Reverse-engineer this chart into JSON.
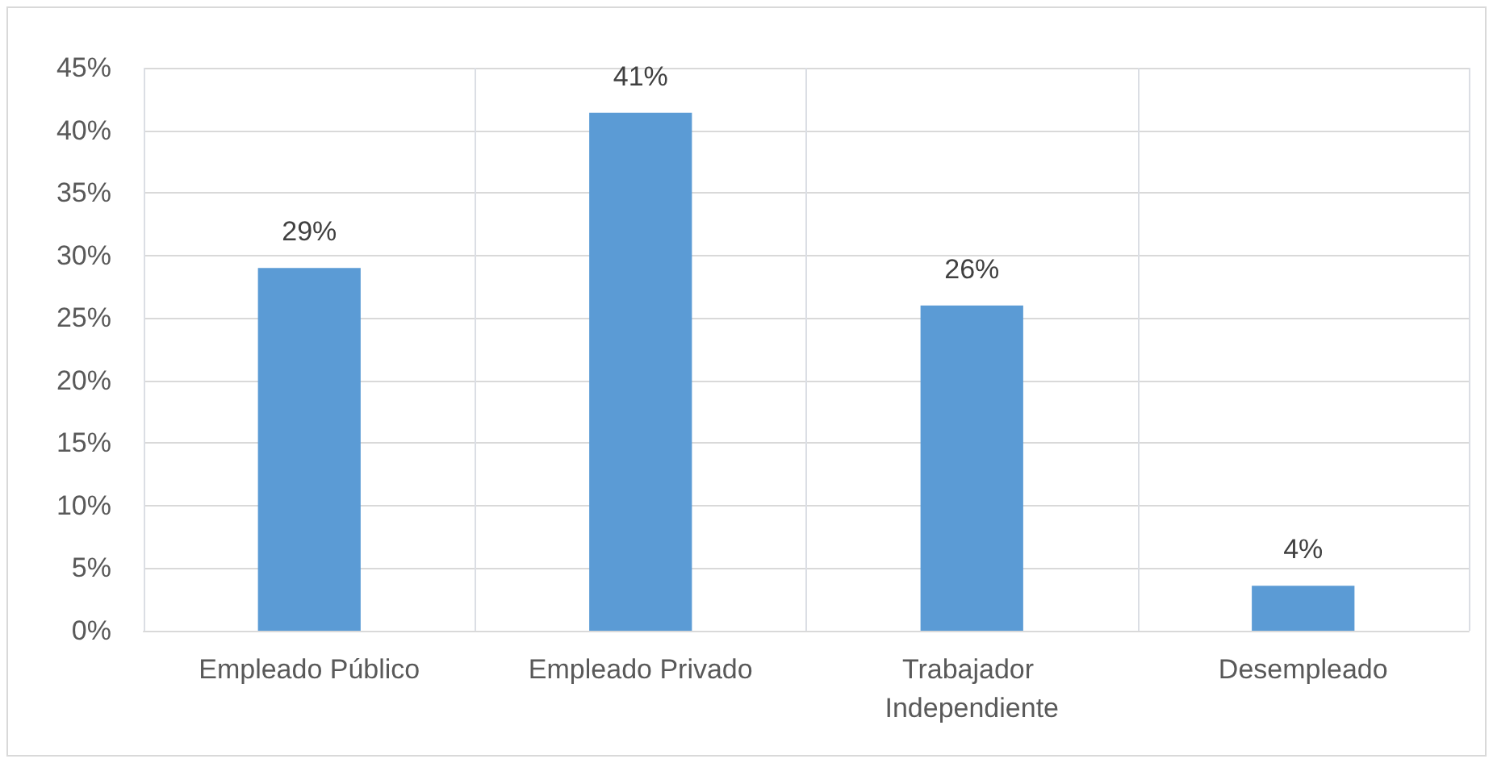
{
  "chart_data": {
    "type": "bar",
    "categories": [
      "Empleado Público",
      "Empleado Privado",
      "Trabajador Independiente",
      "Desempleado"
    ],
    "values": [
      29,
      41.4,
      26,
      3.6
    ],
    "value_labels": [
      "29%",
      "41%",
      "26%",
      "4%"
    ],
    "color": "#5b9bd5",
    "ylim": [
      0,
      45
    ],
    "yticks": [
      {
        "value": 0,
        "label": "0%"
      },
      {
        "value": 5,
        "label": "5%"
      },
      {
        "value": 10,
        "label": "10%"
      },
      {
        "value": 15,
        "label": "15%"
      },
      {
        "value": 20,
        "label": "20%"
      },
      {
        "value": 25,
        "label": "25%"
      },
      {
        "value": 30,
        "label": "30%"
      },
      {
        "value": 35,
        "label": "35%"
      },
      {
        "value": 40,
        "label": "40%"
      },
      {
        "value": 45,
        "label": "45%"
      }
    ],
    "grid": true
  }
}
